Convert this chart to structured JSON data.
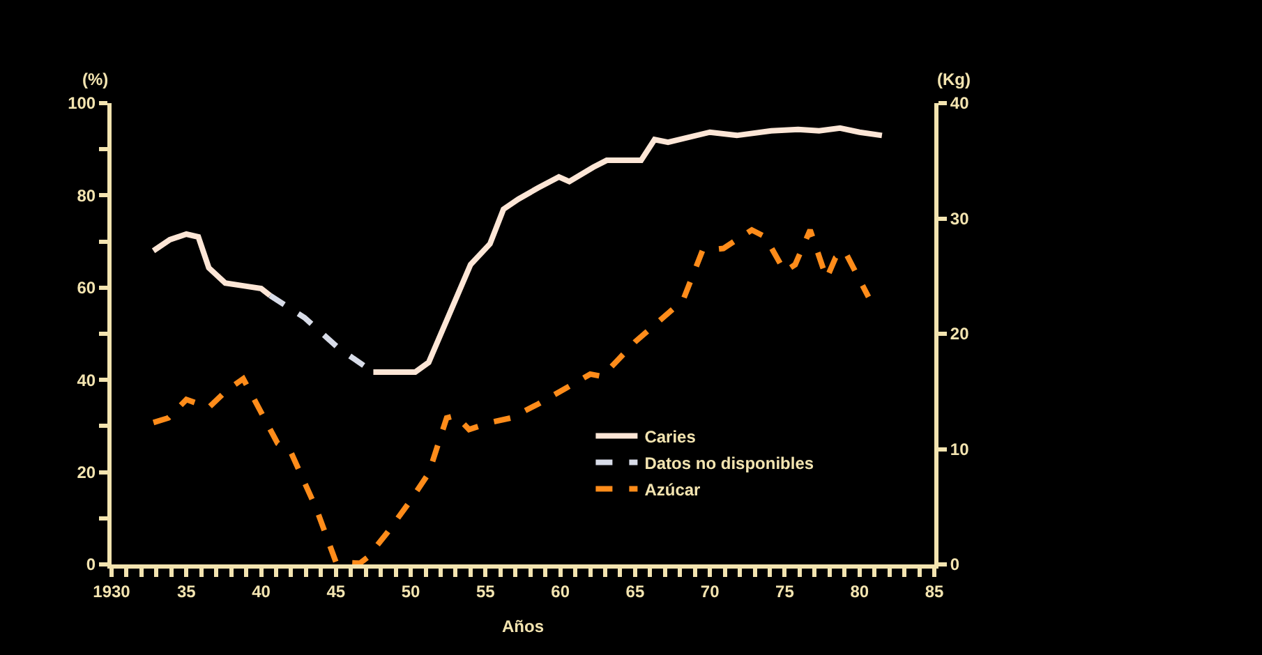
{
  "chart_data": {
    "type": "line",
    "xlabel": "Años",
    "ylabel": "(%)",
    "y2label": "(Kg)",
    "xlim": [
      1930,
      1985
    ],
    "xticks": [
      {
        "value": 1930,
        "label": "1930"
      },
      {
        "value": 1931,
        "label": null
      },
      {
        "value": 1932,
        "label": null
      },
      {
        "value": 1933,
        "label": null
      },
      {
        "value": 1934,
        "label": null
      },
      {
        "value": 1935,
        "label": "35"
      },
      {
        "value": 1936,
        "label": null
      },
      {
        "value": 1937,
        "label": null
      },
      {
        "value": 1938,
        "label": null
      },
      {
        "value": 1939,
        "label": null
      },
      {
        "value": 1940,
        "label": "40"
      },
      {
        "value": 1941,
        "label": null
      },
      {
        "value": 1942,
        "label": null
      },
      {
        "value": 1943,
        "label": null
      },
      {
        "value": 1944,
        "label": null
      },
      {
        "value": 1945,
        "label": "45"
      },
      {
        "value": 1946,
        "label": null
      },
      {
        "value": 1947,
        "label": null
      },
      {
        "value": 1948,
        "label": null
      },
      {
        "value": 1949,
        "label": null
      },
      {
        "value": 1950,
        "label": "50"
      },
      {
        "value": 1951,
        "label": null
      },
      {
        "value": 1952,
        "label": null
      },
      {
        "value": 1953,
        "label": null
      },
      {
        "value": 1954,
        "label": null
      },
      {
        "value": 1955,
        "label": "55"
      },
      {
        "value": 1956,
        "label": null
      },
      {
        "value": 1957,
        "label": null
      },
      {
        "value": 1958,
        "label": null
      },
      {
        "value": 1959,
        "label": null
      },
      {
        "value": 1960,
        "label": "60"
      },
      {
        "value": 1961,
        "label": null
      },
      {
        "value": 1962,
        "label": null
      },
      {
        "value": 1963,
        "label": null
      },
      {
        "value": 1964,
        "label": null
      },
      {
        "value": 1965,
        "label": "65"
      },
      {
        "value": 1966,
        "label": null
      },
      {
        "value": 1967,
        "label": null
      },
      {
        "value": 1968,
        "label": null
      },
      {
        "value": 1969,
        "label": null
      },
      {
        "value": 1970,
        "label": "70"
      },
      {
        "value": 1971,
        "label": null
      },
      {
        "value": 1972,
        "label": null
      },
      {
        "value": 1973,
        "label": null
      },
      {
        "value": 1974,
        "label": null
      },
      {
        "value": 1975,
        "label": "75"
      },
      {
        "value": 1976,
        "label": null
      },
      {
        "value": 1977,
        "label": null
      },
      {
        "value": 1978,
        "label": null
      },
      {
        "value": 1979,
        "label": null
      },
      {
        "value": 1980,
        "label": "80"
      },
      {
        "value": 1981,
        "label": null
      },
      {
        "value": 1982,
        "label": null
      },
      {
        "value": 1983,
        "label": null
      },
      {
        "value": 1984,
        "label": null
      },
      {
        "value": 1985,
        "label": "85"
      }
    ],
    "ylim": [
      0,
      100
    ],
    "yticks": [
      0,
      {
        "value": 10,
        "label": null
      },
      20,
      {
        "value": 30,
        "label": null
      },
      40,
      {
        "value": 50,
        "label": null
      },
      60,
      {
        "value": 70,
        "label": null
      },
      80,
      {
        "value": 90,
        "label": null
      },
      100
    ],
    "y2lim": [
      0,
      40
    ],
    "y2ticks": [
      0,
      10,
      20,
      30,
      40
    ],
    "grid": false,
    "legend": "bottom right",
    "marker": "none",
    "series": [
      {
        "name": "Caries",
        "color": "#fde6d6",
        "line_style": "solid",
        "x": [
          1932.8,
          1933.9,
          1935.0,
          1935.8,
          1936.5,
          1937.6,
          1938.8,
          1940.0,
          1940.6,
          1944.0,
          1947.5,
          1949.0,
          1950.3,
          1951.2,
          1952.6,
          1954.0,
          1955.3,
          1956.2,
          1957.2,
          1958.5,
          1959.9,
          1960.6,
          1962.2,
          1963.1,
          1965.4,
          1966.3,
          1967.2,
          1970.0,
          1971.8,
          1974.1,
          1975.9,
          1977.3,
          1978.7,
          1980.0,
          1981.5
        ],
        "values": [
          68.0,
          70.4,
          71.6,
          71.0,
          64.3,
          61.0,
          60.4,
          59.8,
          58.3,
          null,
          41.7,
          41.7,
          41.7,
          43.8,
          54.4,
          65.0,
          69.5,
          77.0,
          79.2,
          81.6,
          84.0,
          83.0,
          86.1,
          87.6,
          87.6,
          92.1,
          91.5,
          93.7,
          93.0,
          94.0,
          94.3,
          94.0,
          94.6,
          93.7,
          93.0
        ]
      },
      {
        "name": "Datos no disponibles",
        "color": "#d8dce8",
        "line_style": "dashed",
        "x": [
          1940.6,
          1942.9,
          1945.2,
          1947.5
        ],
        "values": [
          58.3,
          53.5,
          46.8,
          41.7
        ]
      },
      {
        "name": "Azúcar",
        "color": "#ff8c1a",
        "line_style": "dashed",
        "axis": "y2",
        "x": [
          1932.8,
          1933.8,
          1935.0,
          1936.5,
          1937.7,
          1938.8,
          1940.2,
          1941.1,
          1942.0,
          1943.7,
          1945.0,
          1946.6,
          1947.1,
          1948.4,
          1949.8,
          1951.2,
          1952.4,
          1953.0,
          1953.9,
          1955.3,
          1956.7,
          1958.5,
          1960.4,
          1962.0,
          1962.8,
          1965.0,
          1968.2,
          1969.5,
          1970.9,
          1972.8,
          1973.7,
          1975.0,
          1975.7,
          1976.7,
          1977.8,
          1978.4,
          1979.0,
          1980.6
        ],
        "values": [
          12.3,
          12.7,
          14.3,
          13.6,
          15.1,
          16.1,
          12.7,
          10.5,
          9.7,
          4.8,
          0.2,
          0.1,
          0.6,
          2.7,
          5.2,
          7.9,
          12.7,
          12.9,
          11.7,
          12.3,
          12.7,
          13.9,
          15.3,
          16.5,
          16.3,
          19.3,
          22.9,
          27.2,
          27.4,
          29.0,
          28.4,
          25.4,
          26.0,
          29.0,
          24.8,
          26.6,
          27.2,
          23.2
        ]
      }
    ]
  }
}
